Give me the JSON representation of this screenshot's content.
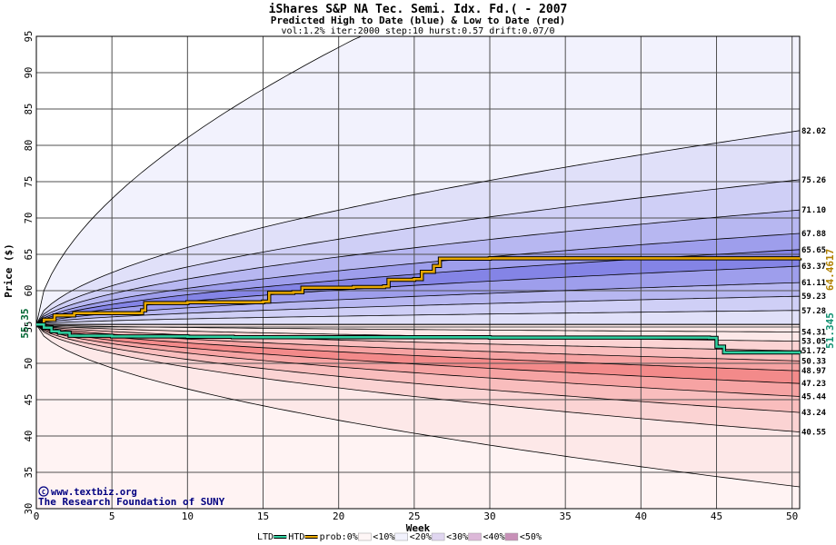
{
  "chart_data": {
    "type": "area",
    "title": "iShares S&P NA Tec. Semi. Idx. Fd.( - 2007",
    "subtitle": "Predicted High to Date (blue) &  Low to Date (red)",
    "params": "vol:1.2% iter:2000 step:10 hurst:0.57 drift:0.07/0",
    "xlabel": "Week",
    "ylabel": "Price ($)",
    "xlim": [
      0,
      50.5
    ],
    "ylim": [
      30,
      95
    ],
    "x_ticks": [
      "0",
      "5",
      "10",
      "15",
      "20",
      "25",
      "30",
      "35",
      "40",
      "45",
      "50"
    ],
    "y_ticks": [
      "30",
      "35",
      "40",
      "45",
      "50",
      "55",
      "60",
      "65",
      "70",
      "75",
      "80",
      "85",
      "90",
      "95"
    ],
    "grid": true,
    "start_price": 55.35,
    "start_label": "55.35",
    "high_quantile_finals": [
      82.02,
      75.26,
      71.1,
      67.88,
      65.65,
      63.37,
      61.11,
      59.23,
      57.28,
      54.31
    ],
    "low_quantile_finals": [
      53.05,
      51.72,
      50.33,
      48.97,
      47.23,
      45.44,
      43.24,
      40.55
    ],
    "right_labels": [
      "82.02",
      "75.26",
      "71.10",
      "67.88",
      "65.65",
      "63.37",
      "61.11",
      "59.23",
      "57.28",
      "54.31",
      "53.05",
      "51.72",
      "50.33",
      "48.97",
      "47.23",
      "45.44",
      "43.24",
      "40.55"
    ],
    "htd": {
      "name": "HTD",
      "final": 64.4617,
      "final_label": "64.4617",
      "steps": [
        [
          0,
          55.35
        ],
        [
          0.5,
          56.0
        ],
        [
          1.2,
          56.6
        ],
        [
          2.5,
          56.9
        ],
        [
          7,
          57.3
        ],
        [
          7.2,
          58.3
        ],
        [
          10,
          58.4
        ],
        [
          15,
          58.5
        ],
        [
          15.4,
          59.7
        ],
        [
          17,
          59.8
        ],
        [
          17.6,
          60.4
        ],
        [
          21,
          60.5
        ],
        [
          23,
          60.6
        ],
        [
          23.3,
          61.5
        ],
        [
          25,
          61.6
        ],
        [
          25.5,
          62.6
        ],
        [
          26.3,
          63.4
        ],
        [
          26.7,
          64.4
        ],
        [
          30,
          64.45
        ],
        [
          50.5,
          64.46
        ]
      ]
    },
    "ltd": {
      "name": "LTD",
      "final": 51.345,
      "final_label": "51.345",
      "steps": [
        [
          0,
          55.35
        ],
        [
          0.5,
          54.9
        ],
        [
          1.0,
          54.4
        ],
        [
          1.5,
          54.2
        ],
        [
          2.2,
          53.8
        ],
        [
          5,
          53.7
        ],
        [
          10,
          53.65
        ],
        [
          13,
          53.6
        ],
        [
          30,
          53.55
        ],
        [
          44.5,
          53.5
        ],
        [
          45,
          52.3
        ],
        [
          45.5,
          51.5
        ],
        [
          50.5,
          51.35
        ]
      ]
    },
    "legend": [
      "LTD",
      "HTD",
      "prob:0%",
      "<10%",
      "<20%",
      "<30%",
      "<40%",
      "<50%"
    ],
    "credit_line1": "www.textbiz.org",
    "credit_line2": "The Research Foundation of SUNY",
    "colors": {
      "high_fill": [
        "#f2f2fd",
        "#e0e0f9",
        "#cfcff6",
        "#b7b7f1",
        "#9e9eec",
        "#8484e6",
        "#9e9eec",
        "#b7b7f1",
        "#cfcff6",
        "#e0e0f9",
        "#f2f2fd"
      ],
      "low_fill": [
        "#fde8e8",
        "#fbd3d3",
        "#f9bdbd",
        "#f6a3a3",
        "#f38a8a",
        "#f6a3a3",
        "#f9bdbd",
        "#fbd3d3",
        "#fde8e8"
      ],
      "htd": "#e8a800",
      "ltd": "#30d0a0",
      "grid": "#505050",
      "start_label": "#006633",
      "credit": "#000080"
    }
  }
}
